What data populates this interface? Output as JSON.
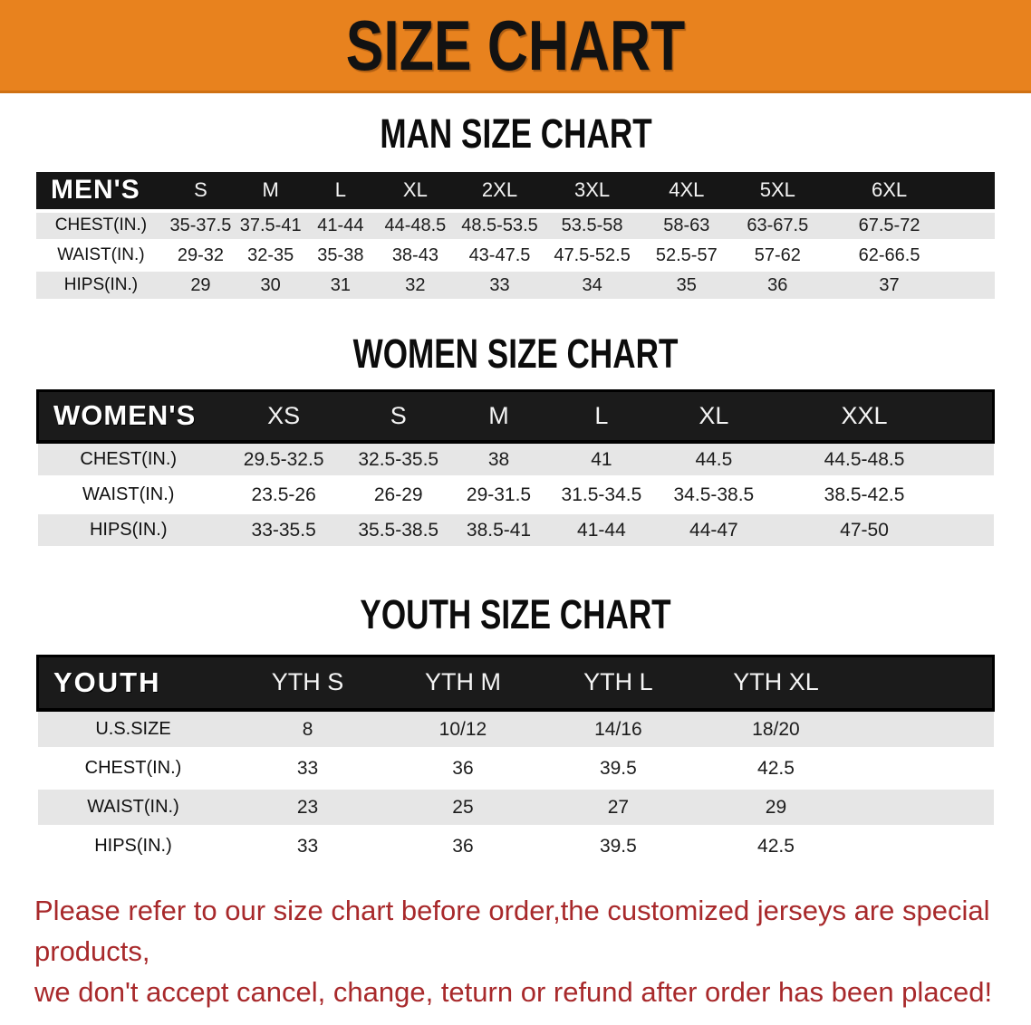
{
  "banner": {
    "title": "SIZE CHART"
  },
  "theme": {
    "banner_bg": "#E8821E",
    "header_bg": "#161616",
    "row_gray": "#E6E6E6",
    "disclaimer_color": "#A8292B"
  },
  "sections": [
    {
      "heading": "MAN SIZE CHART",
      "table": {
        "header_label": "MEN'S",
        "columns": [
          "S",
          "M",
          "L",
          "XL",
          "2XL",
          "3XL",
          "4XL",
          "5XL",
          "6XL"
        ],
        "rows": [
          {
            "label": "CHEST(IN.)",
            "values": [
              "35-37.5",
              "37.5-41",
              "41-44",
              "44-48.5",
              "48.5-53.5",
              "53.5-58",
              "58-63",
              "63-67.5",
              "67.5-72"
            ]
          },
          {
            "label": "WAIST(IN.)",
            "values": [
              "29-32",
              "32-35",
              "35-38",
              "38-43",
              "43-47.5",
              "47.5-52.5",
              "52.5-57",
              "57-62",
              "62-66.5"
            ]
          },
          {
            "label": "HIPS(IN.)",
            "values": [
              "29",
              "30",
              "31",
              "32",
              "33",
              "34",
              "35",
              "36",
              "37"
            ]
          }
        ]
      }
    },
    {
      "heading": "WOMEN SIZE CHART",
      "table": {
        "header_label": "WOMEN'S",
        "columns": [
          "XS",
          "S",
          "M",
          "L",
          "XL",
          "XXL"
        ],
        "rows": [
          {
            "label": "CHEST(IN.)",
            "values": [
              "29.5-32.5",
              "32.5-35.5",
              "38",
              "41",
              "44.5",
              "44.5-48.5"
            ]
          },
          {
            "label": "WAIST(IN.)",
            "values": [
              "23.5-26",
              "26-29",
              "29-31.5",
              "31.5-34.5",
              "34.5-38.5",
              "38.5-42.5"
            ]
          },
          {
            "label": "HIPS(IN.)",
            "values": [
              "33-35.5",
              "35.5-38.5",
              "38.5-41",
              "41-44",
              "44-47",
              "47-50"
            ]
          }
        ]
      }
    },
    {
      "heading": "YOUTH SIZE CHART",
      "table": {
        "header_label": "YOUTH",
        "columns": [
          "YTH S",
          "YTH M",
          "YTH L",
          "YTH XL"
        ],
        "rows": [
          {
            "label": "U.S.SIZE",
            "values": [
              "8",
              "10/12",
              "14/16",
              "18/20"
            ]
          },
          {
            "label": "CHEST(IN.)",
            "values": [
              "33",
              "36",
              "39.5",
              "42.5"
            ]
          },
          {
            "label": "WAIST(IN.)",
            "values": [
              "23",
              "25",
              "27",
              "29"
            ]
          },
          {
            "label": "HIPS(IN.)",
            "values": [
              "33",
              "36",
              "39.5",
              "42.5"
            ]
          }
        ]
      }
    }
  ],
  "disclaimer": {
    "line1": "Please refer to our size chart before order,the customized jerseys are special products,",
    "line2": "we don't accept cancel, change, teturn or refund after order has been placed!"
  }
}
